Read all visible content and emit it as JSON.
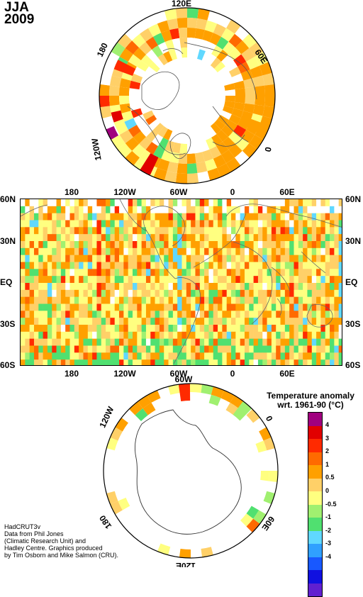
{
  "title": {
    "season": "JJA",
    "year": "2009"
  },
  "north_polar": {
    "labels": [
      {
        "text": "120E",
        "name": "north-label-120e"
      },
      {
        "text": "60E",
        "name": "north-label-60e"
      },
      {
        "text": "0",
        "name": "north-label-0"
      },
      {
        "text": "120W",
        "name": "north-label-120w"
      },
      {
        "text": "180",
        "name": "north-label-180"
      }
    ]
  },
  "map": {
    "top_labels": [
      "180",
      "120W",
      "60W",
      "0",
      "60E"
    ],
    "bottom_labels": [
      "180",
      "120W",
      "60W",
      "0",
      "60E"
    ],
    "left_labels": [
      "60N",
      "30N",
      "EQ",
      "30S",
      "60S"
    ],
    "right_labels": [
      "60N",
      "30N",
      "EQ",
      "30S",
      "60S"
    ]
  },
  "south_polar": {
    "labels": [
      {
        "text": "60W",
        "name": "south-label-60w"
      },
      {
        "text": "0",
        "name": "south-label-0"
      },
      {
        "text": "60E",
        "name": "south-label-60e"
      },
      {
        "text": "120E",
        "name": "south-label-120e"
      },
      {
        "text": "180",
        "name": "south-label-180"
      },
      {
        "text": "120W",
        "name": "south-label-120w"
      }
    ]
  },
  "legend": {
    "title_line1": "Temperature anomaly",
    "title_line2": "wrt. 1961-90  (°C)",
    "ticks": [
      "4",
      "3",
      "2",
      "1",
      "0.5",
      "0",
      "-0.5",
      "-1",
      "-2",
      "-3",
      "-4"
    ],
    "colors": [
      "#a0007f",
      "#e10000",
      "#ff2a00",
      "#ff6a00",
      "#ffa000",
      "#ffd068",
      "#ffff80",
      "#a0f070",
      "#50e070",
      "#60d8ff",
      "#30a0ff",
      "#1858ff",
      "#1010e0",
      "#6020d0"
    ]
  },
  "credit": {
    "line1": "HadCRUT3v",
    "line2": "Data from Phil Jones",
    "line3": "(Climatic Research Unit) and",
    "line4": "Hadley Centre.  Graphics produced",
    "line5": "by Tim Osborn and Mike Salmon (CRU)."
  }
}
